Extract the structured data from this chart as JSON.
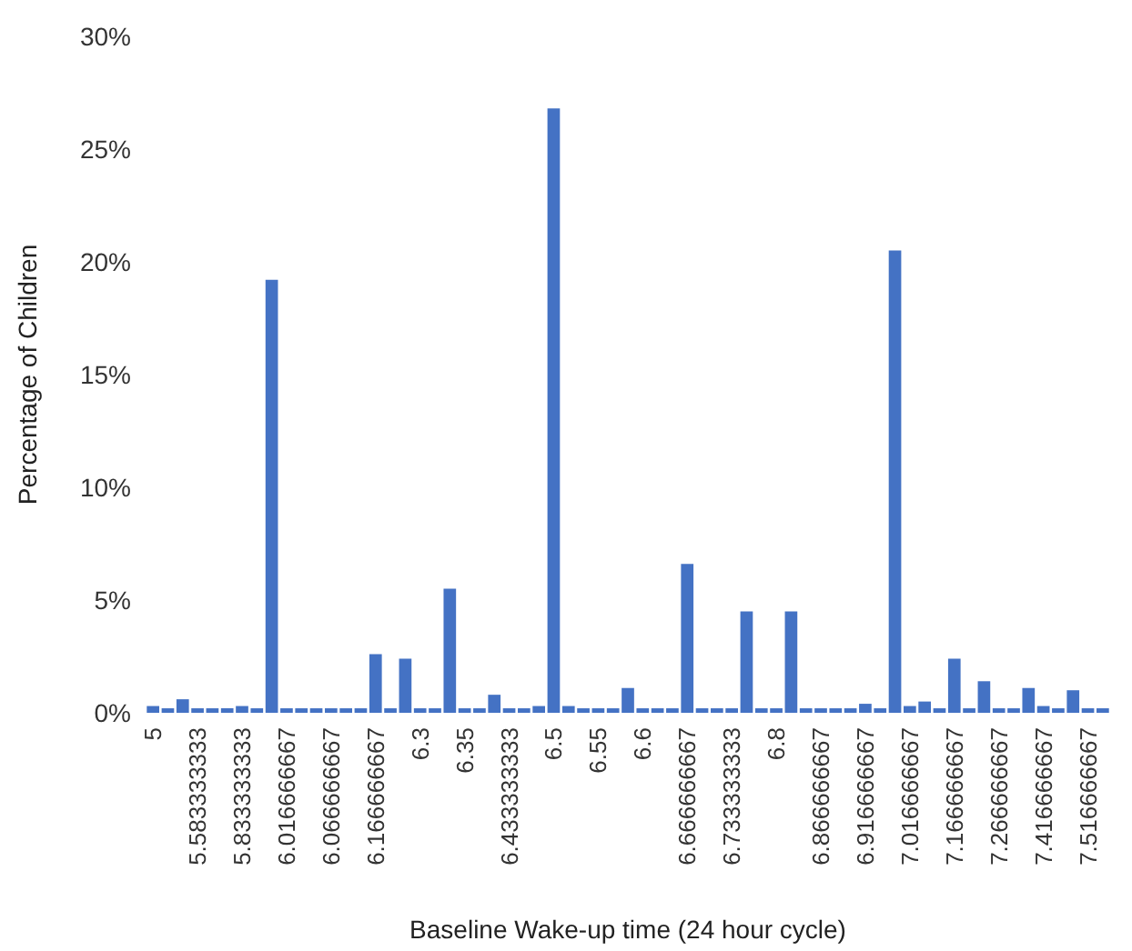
{
  "chart_data": {
    "type": "bar",
    "xlabel": "Baseline Wake-up time (24 hour cycle)",
    "ylabel": "Percentage of Children",
    "categories": [
      "5",
      null,
      null,
      "5.583333333",
      null,
      null,
      "5.833333333",
      null,
      null,
      "6.016666667",
      null,
      null,
      "6.066666667",
      null,
      null,
      "6.166666667",
      null,
      null,
      "6.3",
      null,
      null,
      "6.35",
      null,
      null,
      "6.433333333",
      null,
      null,
      "6.5",
      null,
      null,
      "6.55",
      null,
      null,
      "6.6",
      null,
      null,
      "6.666666667",
      null,
      null,
      "6.733333333",
      null,
      null,
      "6.8",
      null,
      null,
      "6.866666667",
      null,
      null,
      "6.916666667",
      null,
      null,
      "7.016666667",
      null,
      null,
      "7.166666667",
      null,
      null,
      "7.266666667",
      null,
      null,
      "7.416666667",
      null,
      null,
      "7.516666667",
      null
    ],
    "values": [
      0.3,
      0.2,
      0.6,
      0.2,
      0.2,
      0.2,
      0.3,
      0.2,
      19.2,
      0.2,
      0.2,
      0.2,
      0.2,
      0.2,
      0.2,
      2.6,
      0.2,
      2.4,
      0.2,
      0.2,
      5.5,
      0.2,
      0.2,
      0.8,
      0.2,
      0.2,
      0.3,
      26.8,
      0.3,
      0.2,
      0.2,
      0.2,
      1.1,
      0.2,
      0.2,
      0.2,
      6.6,
      0.2,
      0.2,
      0.2,
      4.5,
      0.2,
      0.2,
      4.5,
      0.2,
      0.2,
      0.2,
      0.2,
      0.4,
      0.2,
      20.5,
      0.3,
      0.5,
      0.2,
      2.4,
      0.2,
      1.4,
      0.2,
      0.2,
      1.1,
      0.3,
      0.2,
      1.0,
      0.2,
      0.2
    ],
    "color": "#4472c4",
    "ylim": [
      0,
      30
    ],
    "yticks": [
      {
        "value": 0,
        "label": "0%"
      },
      {
        "value": 5,
        "label": "5%"
      },
      {
        "value": 10,
        "label": "10%"
      },
      {
        "value": 15,
        "label": "15%"
      },
      {
        "value": 20,
        "label": "20%"
      },
      {
        "value": 25,
        "label": "25%"
      },
      {
        "value": 30,
        "label": "30%"
      }
    ],
    "grid": false
  }
}
